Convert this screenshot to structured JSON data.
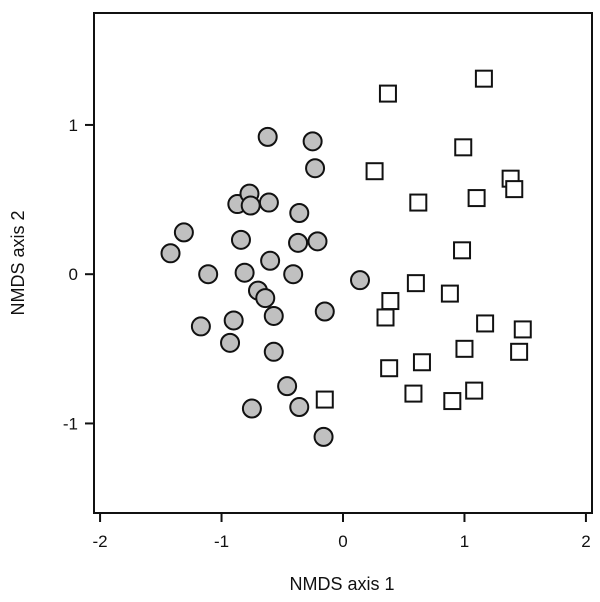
{
  "chart_data": {
    "type": "scatter",
    "xlabel": "NMDS axis 1",
    "ylabel": "NMDS axis 2",
    "xlim": [
      -2.05,
      2.05
    ],
    "ylim": [
      -1.6,
      1.75
    ],
    "xticks": [
      -2,
      -1,
      0,
      1,
      2
    ],
    "yticks": [
      -1,
      0,
      1
    ],
    "grid": false,
    "colors": {
      "circle_fill": "#c0c0c0",
      "stroke": "#111111"
    },
    "series": [
      {
        "marker": "circle",
        "points": [
          {
            "x": -1.42,
            "y": 0.14
          },
          {
            "x": -1.31,
            "y": 0.28
          },
          {
            "x": -1.17,
            "y": -0.35
          },
          {
            "x": -1.11,
            "y": 0.0
          },
          {
            "x": -0.93,
            "y": -0.46
          },
          {
            "x": -0.9,
            "y": -0.31
          },
          {
            "x": -0.87,
            "y": 0.47
          },
          {
            "x": -0.84,
            "y": 0.23
          },
          {
            "x": -0.81,
            "y": 0.01
          },
          {
            "x": -0.77,
            "y": 0.54
          },
          {
            "x": -0.76,
            "y": 0.46
          },
          {
            "x": -0.75,
            "y": -0.9
          },
          {
            "x": -0.7,
            "y": -0.11
          },
          {
            "x": -0.64,
            "y": -0.16
          },
          {
            "x": -0.62,
            "y": 0.92
          },
          {
            "x": -0.61,
            "y": 0.48
          },
          {
            "x": -0.6,
            "y": 0.09
          },
          {
            "x": -0.57,
            "y": -0.28
          },
          {
            "x": -0.57,
            "y": -0.52
          },
          {
            "x": -0.46,
            "y": -0.75
          },
          {
            "x": -0.41,
            "y": 0.0
          },
          {
            "x": -0.37,
            "y": 0.21
          },
          {
            "x": -0.36,
            "y": 0.41
          },
          {
            "x": -0.36,
            "y": -0.89
          },
          {
            "x": -0.25,
            "y": 0.89
          },
          {
            "x": -0.23,
            "y": 0.71
          },
          {
            "x": -0.21,
            "y": 0.22
          },
          {
            "x": -0.15,
            "y": -0.25
          },
          {
            "x": -0.16,
            "y": -1.09
          },
          {
            "x": 0.14,
            "y": -0.04
          }
        ]
      },
      {
        "marker": "square",
        "points": [
          {
            "x": -0.15,
            "y": -0.84
          },
          {
            "x": 0.26,
            "y": 0.69
          },
          {
            "x": 0.35,
            "y": -0.29
          },
          {
            "x": 0.37,
            "y": 1.21
          },
          {
            "x": 0.38,
            "y": -0.63
          },
          {
            "x": 0.39,
            "y": -0.18
          },
          {
            "x": 0.58,
            "y": -0.8
          },
          {
            "x": 0.6,
            "y": -0.06
          },
          {
            "x": 0.62,
            "y": 0.48
          },
          {
            "x": 0.65,
            "y": -0.59
          },
          {
            "x": 0.88,
            "y": -0.13
          },
          {
            "x": 0.9,
            "y": -0.85
          },
          {
            "x": 0.98,
            "y": 0.16
          },
          {
            "x": 0.99,
            "y": 0.85
          },
          {
            "x": 1.0,
            "y": -0.5
          },
          {
            "x": 1.08,
            "y": -0.78
          },
          {
            "x": 1.1,
            "y": 0.51
          },
          {
            "x": 1.16,
            "y": 1.31
          },
          {
            "x": 1.17,
            "y": -0.33
          },
          {
            "x": 1.38,
            "y": 0.64
          },
          {
            "x": 1.41,
            "y": 0.57
          },
          {
            "x": 1.45,
            "y": -0.52
          },
          {
            "x": 1.48,
            "y": -0.37
          }
        ]
      }
    ]
  }
}
